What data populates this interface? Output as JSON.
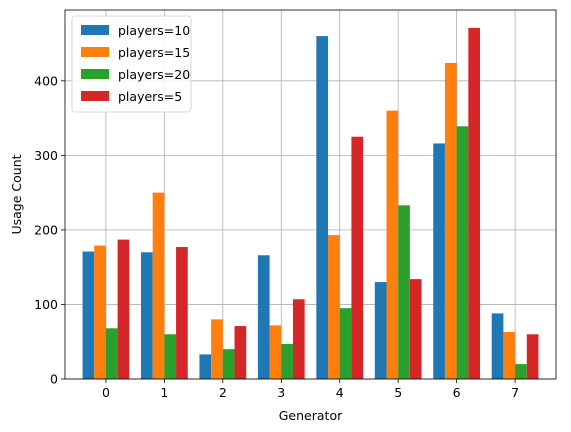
{
  "chart_data": {
    "type": "bar",
    "title": "",
    "xlabel": "Generator",
    "ylabel": "Usage Count",
    "categories": [
      "0",
      "1",
      "2",
      "3",
      "4",
      "5",
      "6",
      "7"
    ],
    "ylim": [
      0,
      495
    ],
    "yticks": [
      0,
      100,
      200,
      300,
      400
    ],
    "grid": true,
    "legend_position": "top-left",
    "series": [
      {
        "name": "players=10",
        "color": "#1f77b4",
        "values": [
          171,
          170,
          33,
          166,
          460,
          130,
          316,
          88
        ]
      },
      {
        "name": "players=15",
        "color": "#ff7f0e",
        "values": [
          179,
          250,
          80,
          72,
          193,
          360,
          424,
          63
        ]
      },
      {
        "name": "players=20",
        "color": "#2ca02c",
        "values": [
          68,
          60,
          40,
          47,
          95,
          233,
          339,
          20
        ]
      },
      {
        "name": "players=5",
        "color": "#d62728",
        "values": [
          187,
          177,
          71,
          107,
          325,
          134,
          471,
          60
        ]
      }
    ]
  }
}
